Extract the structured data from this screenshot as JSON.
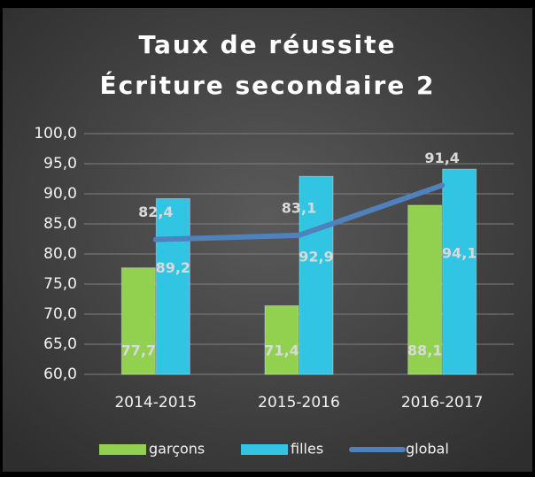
{
  "chart_data": {
    "type": "bar",
    "title": "Taux de réussite",
    "subtitle": "Écriture secondaire 2",
    "categories": [
      "2014-2015",
      "2015-2016",
      "2016-2017"
    ],
    "series": [
      {
        "name": "garçons",
        "color": "#92d050",
        "values": [
          77.7,
          71.4,
          88.1
        ],
        "value_labels": [
          "77,7",
          "71,4",
          "88,1"
        ]
      },
      {
        "name": "filles",
        "color": "#31c4e3",
        "values": [
          89.2,
          92.9,
          94.1
        ],
        "value_labels": [
          "89,2",
          "92,9",
          "94,1"
        ]
      },
      {
        "name": "global",
        "color": "#4f81bd",
        "type": "line",
        "values": [
          82.4,
          83.1,
          91.4
        ],
        "value_labels": [
          "82,4",
          "83,1",
          "91,4"
        ]
      }
    ],
    "ylim": [
      60,
      100
    ],
    "yticks": [
      {
        "value": 60,
        "label": "60,0"
      },
      {
        "value": 65,
        "label": "65,0"
      },
      {
        "value": 70,
        "label": "70,0"
      },
      {
        "value": 75,
        "label": "75,0"
      },
      {
        "value": 80,
        "label": "80,0"
      },
      {
        "value": 85,
        "label": "85,0"
      },
      {
        "value": 90,
        "label": "90,0"
      },
      {
        "value": 95,
        "label": "95,0"
      },
      {
        "value": 100,
        "label": "100,0"
      }
    ],
    "grid": true,
    "legend": "bottom"
  }
}
